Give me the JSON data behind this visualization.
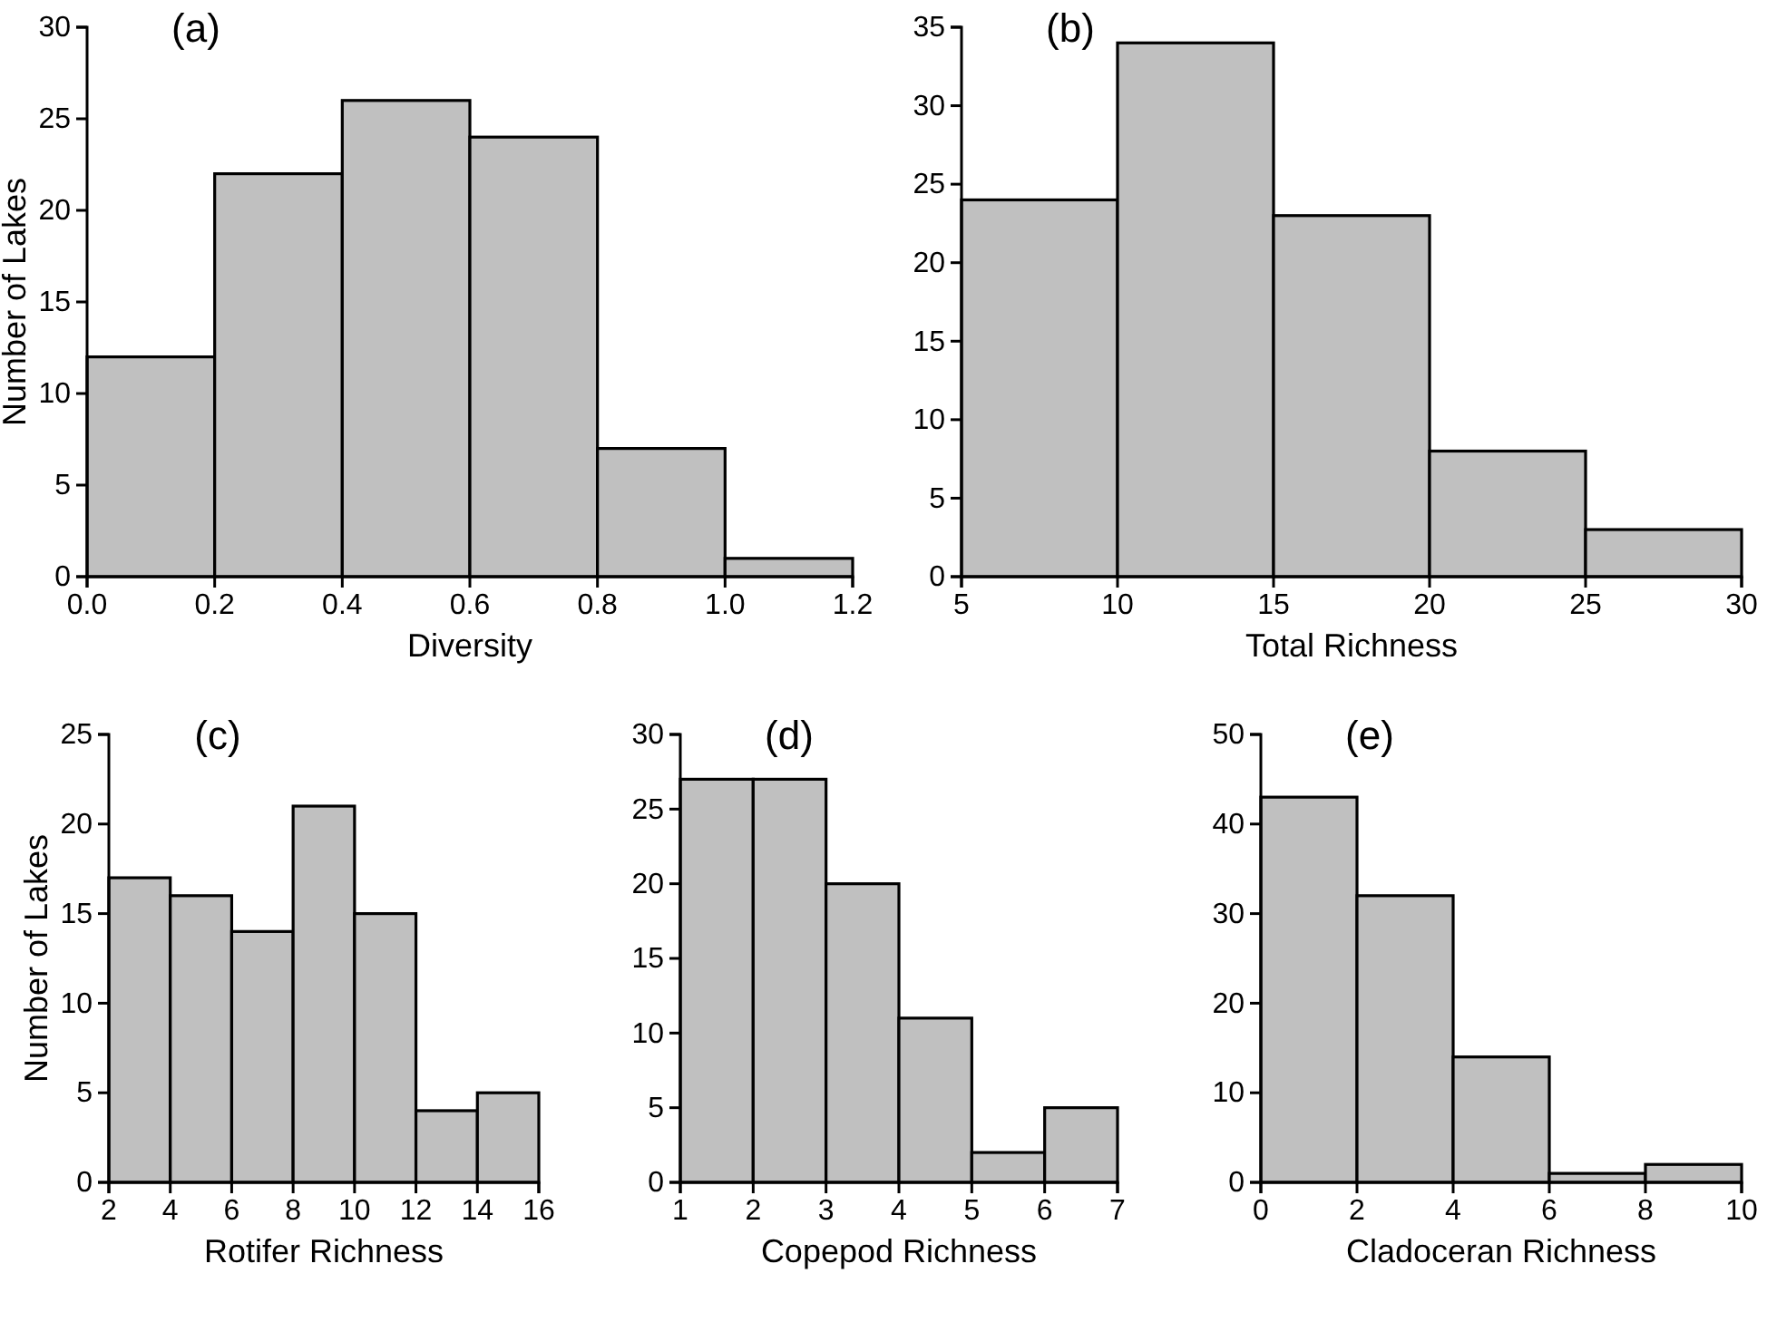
{
  "chart_data": [
    {
      "type": "histogram",
      "title": "(a)",
      "xlabel": "Diversity",
      "ylabel": "Number of Lakes",
      "bins": [
        0,
        0.2,
        0.4,
        0.6,
        0.8,
        1.0,
        1.2
      ],
      "values": [
        12,
        22,
        26,
        24,
        7,
        1
      ],
      "color": "#c0c0c0",
      "xlim": [
        0,
        1.2
      ],
      "xticks": [
        {
          "value": 0,
          "label": "0.0"
        },
        {
          "value": 0.2,
          "label": "0.2"
        },
        {
          "value": 0.4,
          "label": "0.4"
        },
        {
          "value": 0.6,
          "label": "0.6"
        },
        {
          "value": 0.8,
          "label": "0.8"
        },
        {
          "value": 1.0,
          "label": "1.0"
        },
        {
          "value": 1.2,
          "label": "1.2"
        }
      ],
      "ylim": [
        0,
        30
      ],
      "yticks": [
        0,
        5,
        10,
        15,
        20,
        25,
        30
      ]
    },
    {
      "type": "histogram",
      "title": "(b)",
      "xlabel": "Total Richness",
      "bins": [
        5,
        10,
        15,
        20,
        25,
        30
      ],
      "values": [
        24,
        34,
        23,
        8,
        3
      ],
      "color": "#c0c0c0",
      "xlim": [
        5,
        30
      ],
      "xticks": [
        5,
        10,
        15,
        20,
        25,
        30
      ],
      "ylim": [
        0,
        35
      ],
      "yticks": [
        0,
        5,
        10,
        15,
        20,
        25,
        30,
        35
      ]
    },
    {
      "type": "histogram",
      "title": "(c)",
      "xlabel": "Rotifer Richness",
      "ylabel": "Number of Lakes",
      "bins": [
        2,
        4,
        6,
        8,
        10,
        12,
        14,
        16
      ],
      "values": [
        17,
        16,
        14,
        21,
        15,
        4,
        5
      ],
      "color": "#c0c0c0",
      "xlim": [
        2,
        16
      ],
      "xticks": [
        2,
        4,
        6,
        8,
        10,
        12,
        14,
        16
      ],
      "ylim": [
        0,
        25
      ],
      "yticks": [
        0,
        5,
        10,
        15,
        20,
        25
      ]
    },
    {
      "type": "histogram",
      "title": "(d)",
      "xlabel": "Copepod Richness",
      "bins": [
        1,
        2,
        3,
        4,
        5,
        6,
        7
      ],
      "values": [
        27,
        27,
        20,
        11,
        2,
        5
      ],
      "color": "#c0c0c0",
      "xlim": [
        1,
        7
      ],
      "xticks": [
        1,
        2,
        3,
        4,
        5,
        6,
        7
      ],
      "ylim": [
        0,
        30
      ],
      "yticks": [
        0,
        5,
        10,
        15,
        20,
        25,
        30
      ]
    },
    {
      "type": "histogram",
      "title": "(e)",
      "xlabel": "Cladoceran Richness",
      "bins": [
        0,
        2,
        4,
        6,
        8,
        10
      ],
      "values": [
        43,
        32,
        14,
        1,
        2
      ],
      "color": "#c0c0c0",
      "xlim": [
        0,
        10
      ],
      "xticks": [
        0,
        2,
        4,
        6,
        8,
        10
      ],
      "ylim": [
        0,
        50
      ],
      "yticks": [
        0,
        10,
        20,
        30,
        40,
        50
      ]
    }
  ]
}
